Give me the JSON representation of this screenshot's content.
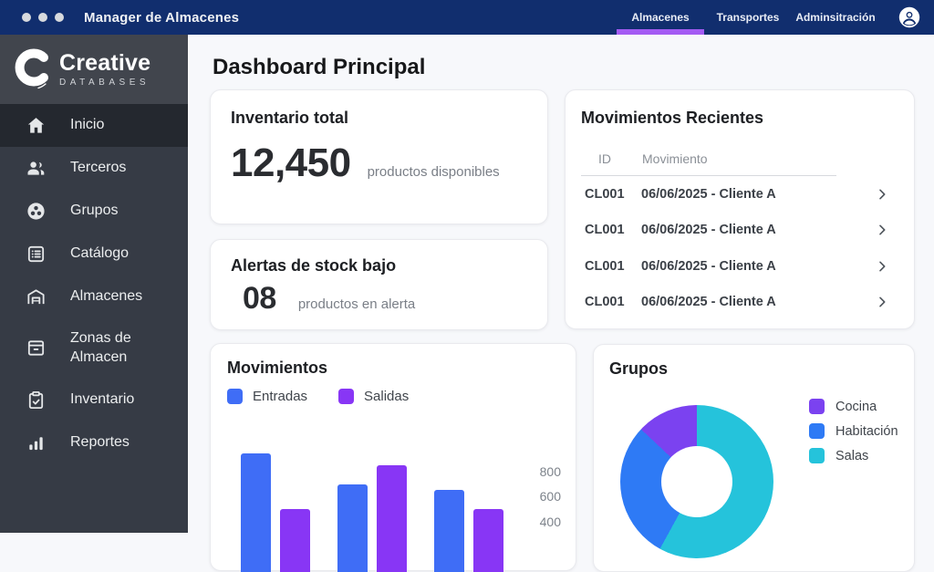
{
  "titlebar": {
    "app_title": "Manager de Almacenes",
    "tabs": [
      {
        "label": "Almacenes",
        "active": true
      },
      {
        "label": "Transportes",
        "active": false
      },
      {
        "label": "Adminsitración",
        "active": false
      }
    ]
  },
  "sidebar": {
    "logo": {
      "brand": "Creative",
      "sub": "DATABASES"
    },
    "items": [
      {
        "label": "Inicio",
        "icon": "home-icon",
        "active": true
      },
      {
        "label": "Terceros",
        "icon": "people-icon",
        "active": false
      },
      {
        "label": "Grupos",
        "icon": "group-circle-icon",
        "active": false
      },
      {
        "label": "Catálogo",
        "icon": "catalog-icon",
        "active": false
      },
      {
        "label": "Almacenes",
        "icon": "warehouse-icon",
        "active": false
      },
      {
        "label": "Zonas de Almacen",
        "icon": "storage-box-icon",
        "active": false
      },
      {
        "label": "Inventario",
        "icon": "clipboard-check-icon",
        "active": false
      },
      {
        "label": "Reportes",
        "icon": "bar-chart-icon",
        "active": false
      }
    ]
  },
  "main": {
    "page_title": "Dashboard Principal",
    "inventory_card": {
      "title": "Inventario total",
      "value": "12,450",
      "caption": "productos disponibles"
    },
    "alerts_card": {
      "title": "Alertas de stock bajo",
      "value": "08",
      "caption": "productos en alerta"
    },
    "recent_movements_card": {
      "title": "Movimientos Recientes",
      "columns": [
        "ID",
        "Movimiento"
      ],
      "rows": [
        {
          "id": "CL001",
          "movement": "06/06/2025 - Cliente A"
        },
        {
          "id": "CL001",
          "movement": "06/06/2025 - Cliente A"
        },
        {
          "id": "CL001",
          "movement": "06/06/2025 - Cliente A"
        },
        {
          "id": "CL001",
          "movement": "06/06/2025 - Cliente A"
        }
      ]
    }
  },
  "colors": {
    "navbar_navy": "#112e6e",
    "tab_accent_purple": "#a45bf3",
    "entradas_blue": "#3f6df6",
    "salidas_purple": "#8836f5",
    "cocina_purple": "#7b42f0",
    "habitacion_blue": "#2e7af5",
    "salas_cyan": "#25c3db"
  },
  "chart_data": [
    {
      "type": "bar",
      "title": "Movimientos",
      "categories": [
        "",
        "",
        ""
      ],
      "series": [
        {
          "name": "Entradas",
          "color": "#3f6df6",
          "values": [
            950,
            700,
            650
          ]
        },
        {
          "name": "Salidas",
          "color": "#8836f5",
          "values": [
            500,
            850,
            500
          ]
        }
      ],
      "y_ticks": [
        800,
        600,
        400
      ],
      "y_axis_side": "right",
      "ylim_visible": [
        400,
        1000
      ],
      "grid": false,
      "legend_position": "top-left",
      "clipped_at_bottom": true
    },
    {
      "type": "pie",
      "title": "Grupos",
      "donut": true,
      "labels": [
        "Cocina",
        "Habitación",
        "Salas"
      ],
      "values_pct": [
        13,
        29,
        58
      ],
      "colors": [
        "#7b42f0",
        "#2e7af5",
        "#25c3db"
      ],
      "legend_position": "right",
      "clipped_at_bottom": true
    }
  ]
}
